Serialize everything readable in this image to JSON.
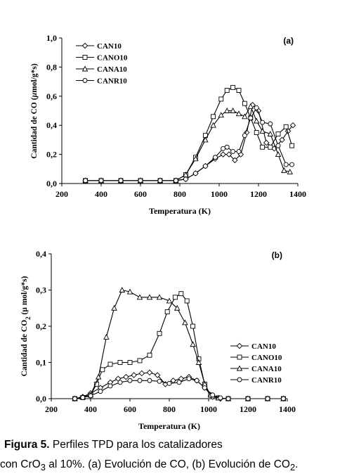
{
  "caption": {
    "label": "Figura 5.",
    "line1_rest": "Perfiles TPD para los catalizadores",
    "line2_a": "con CrO",
    "line2_sub1": "3",
    "line2_b": " al 10%. (a) Evolución de CO, (b) Evolución de CO",
    "line2_sub2": "2",
    "line2_c": "."
  },
  "chart_data": [
    {
      "type": "line",
      "panel_label": "(a)",
      "xlabel": "Temperatura (K)",
      "ylabel_prefix": "Cantidad de CO (",
      "ylabel_mu": "µ",
      "ylabel_suffix": "mol/g*s)",
      "xlim": [
        200,
        1400
      ],
      "ylim": [
        0,
        1.0
      ],
      "xticks": [
        200,
        400,
        600,
        800,
        1000,
        1200,
        1400
      ],
      "xtick_labels": [
        "200",
        "400",
        "600",
        "800",
        "1000",
        "1200",
        "1400"
      ],
      "yticks": [
        0,
        0.2,
        0.4,
        0.6,
        0.8,
        1.0
      ],
      "ytick_labels": [
        "0,0",
        "0,2",
        "0,4",
        "0,6",
        "0,8",
        "1,0"
      ],
      "legend_position": "top-left",
      "series": [
        {
          "name": "CAN10",
          "marker": "diamond",
          "x": [
            320,
            400,
            500,
            600,
            700,
            780,
            830,
            880,
            930,
            980,
            1020,
            1050,
            1080,
            1110,
            1140,
            1170,
            1200,
            1240,
            1280,
            1320,
            1350,
            1375
          ],
          "y": [
            0.02,
            0.02,
            0.02,
            0.02,
            0.02,
            0.02,
            0.03,
            0.07,
            0.12,
            0.17,
            0.2,
            0.2,
            0.16,
            0.2,
            0.35,
            0.54,
            0.5,
            0.28,
            0.24,
            0.3,
            0.36,
            0.4
          ]
        },
        {
          "name": "CANO10",
          "marker": "square",
          "x": [
            320,
            400,
            500,
            600,
            700,
            780,
            830,
            880,
            930,
            970,
            1010,
            1040,
            1070,
            1100,
            1130,
            1160,
            1190,
            1220,
            1260,
            1300,
            1340,
            1370
          ],
          "y": [
            0.02,
            0.02,
            0.02,
            0.02,
            0.02,
            0.02,
            0.06,
            0.18,
            0.33,
            0.46,
            0.58,
            0.64,
            0.66,
            0.64,
            0.55,
            0.45,
            0.35,
            0.25,
            0.25,
            0.34,
            0.39,
            0.26
          ]
        },
        {
          "name": "CANA10",
          "marker": "triangle",
          "x": [
            320,
            400,
            500,
            600,
            700,
            780,
            830,
            880,
            930,
            970,
            1010,
            1040,
            1070,
            1100,
            1130,
            1160,
            1190,
            1220,
            1260,
            1300,
            1330,
            1360
          ],
          "y": [
            0.02,
            0.02,
            0.02,
            0.02,
            0.02,
            0.02,
            0.06,
            0.17,
            0.3,
            0.4,
            0.47,
            0.5,
            0.5,
            0.48,
            0.46,
            0.53,
            0.43,
            0.36,
            0.34,
            0.2,
            0.09,
            0.08
          ]
        },
        {
          "name": "CANR10",
          "marker": "circle",
          "x": [
            320,
            400,
            500,
            600,
            700,
            780,
            830,
            880,
            930,
            980,
            1020,
            1040,
            1070,
            1100,
            1130,
            1160,
            1190,
            1220,
            1260,
            1300,
            1340,
            1370
          ],
          "y": [
            0.02,
            0.02,
            0.02,
            0.02,
            0.02,
            0.02,
            0.03,
            0.07,
            0.12,
            0.18,
            0.24,
            0.25,
            0.22,
            0.22,
            0.33,
            0.45,
            0.52,
            0.42,
            0.41,
            0.26,
            0.13,
            0.13
          ]
        }
      ]
    },
    {
      "type": "line",
      "panel_label": "(b)",
      "xlabel": "Temperatura (K)",
      "ylabel_prefix": "Cantidad de CO",
      "ylabel_sub": "2",
      "ylabel_suffix": " (µ mol/g*s)",
      "xlim": [
        200,
        1400
      ],
      "ylim": [
        0,
        0.4
      ],
      "xticks": [
        200,
        400,
        600,
        800,
        1000,
        1200,
        1400
      ],
      "xtick_labels": [
        "200",
        "400",
        "600",
        "800",
        "1000",
        "1200",
        "1400"
      ],
      "yticks": [
        0,
        0.1,
        0.2,
        0.3,
        0.4
      ],
      "ytick_labels": [
        "0,0",
        "0,1",
        "0,2",
        "0,3",
        "0,4"
      ],
      "legend_position": "right",
      "series": [
        {
          "name": "CAN10",
          "marker": "diamond",
          "x": [
            320,
            360,
            400,
            450,
            500,
            540,
            580,
            620,
            660,
            700,
            740,
            780,
            820,
            860,
            900,
            940,
            980,
            1020,
            1060,
            1100,
            1200,
            1300,
            1380
          ],
          "y": [
            0,
            0.005,
            0.015,
            0.03,
            0.045,
            0.055,
            0.06,
            0.065,
            0.07,
            0.072,
            0.065,
            0.04,
            0.05,
            0.055,
            0.06,
            0.05,
            0.03,
            0.005,
            0,
            0,
            0,
            0,
            0
          ]
        },
        {
          "name": "CANO10",
          "marker": "square",
          "x": [
            320,
            360,
            400,
            430,
            460,
            500,
            550,
            600,
            650,
            700,
            750,
            790,
            830,
            860,
            890,
            920,
            950,
            980,
            1010,
            1050,
            1100,
            1200,
            1300,
            1380
          ],
          "y": [
            0,
            0.003,
            0.01,
            0.04,
            0.08,
            0.095,
            0.1,
            0.1,
            0.105,
            0.12,
            0.18,
            0.24,
            0.28,
            0.29,
            0.27,
            0.2,
            0.11,
            0.04,
            0.01,
            0.002,
            0,
            0,
            0,
            0
          ]
        },
        {
          "name": "CANA10",
          "marker": "triangle",
          "x": [
            320,
            360,
            400,
            440,
            480,
            520,
            560,
            600,
            650,
            700,
            750,
            800,
            840,
            880,
            920,
            950,
            980,
            1010,
            1050,
            1100,
            1200,
            1300,
            1380
          ],
          "y": [
            0,
            0.005,
            0.01,
            0.06,
            0.17,
            0.25,
            0.3,
            0.295,
            0.28,
            0.28,
            0.28,
            0.27,
            0.25,
            0.21,
            0.15,
            0.1,
            0.04,
            0.01,
            0.002,
            0,
            0,
            0,
            0
          ]
        },
        {
          "name": "CANR10",
          "marker": "circle",
          "x": [
            320,
            360,
            400,
            450,
            500,
            550,
            600,
            650,
            700,
            750,
            800,
            850,
            900,
            940,
            980,
            1020,
            1060,
            1100,
            1200,
            1300,
            1380
          ],
          "y": [
            0,
            0.003,
            0.008,
            0.02,
            0.035,
            0.045,
            0.05,
            0.05,
            0.05,
            0.048,
            0.042,
            0.045,
            0.055,
            0.05,
            0.03,
            0.01,
            0.002,
            0,
            0,
            0,
            0
          ]
        }
      ]
    }
  ]
}
